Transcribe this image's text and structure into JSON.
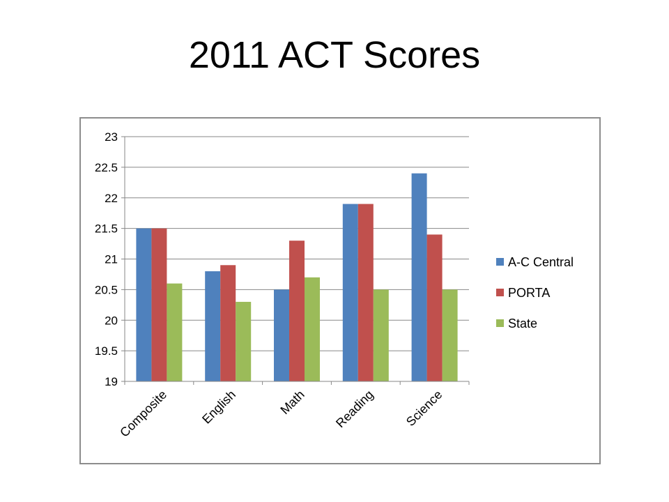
{
  "slide": {
    "title": "2011 ACT Scores"
  },
  "chart_data": {
    "type": "bar",
    "title": "",
    "xlabel": "",
    "ylabel": "",
    "ylim": [
      19,
      23
    ],
    "yticks": [
      "19",
      "19.5",
      "20",
      "20.5",
      "21",
      "21.5",
      "22",
      "22.5",
      "23"
    ],
    "grid": true,
    "legend_position": "right",
    "categories": [
      "Composite",
      "English",
      "Math",
      "Reading",
      "Science"
    ],
    "series": [
      {
        "name": "A-C Central",
        "color": "#4F81BD",
        "values": [
          21.5,
          20.8,
          20.5,
          21.9,
          22.4
        ]
      },
      {
        "name": "PORTA",
        "color": "#C0504D",
        "values": [
          21.5,
          20.9,
          21.3,
          21.9,
          21.4
        ]
      },
      {
        "name": "State",
        "color": "#9BBB59",
        "values": [
          20.6,
          20.3,
          20.7,
          20.5,
          20.5
        ]
      }
    ]
  }
}
